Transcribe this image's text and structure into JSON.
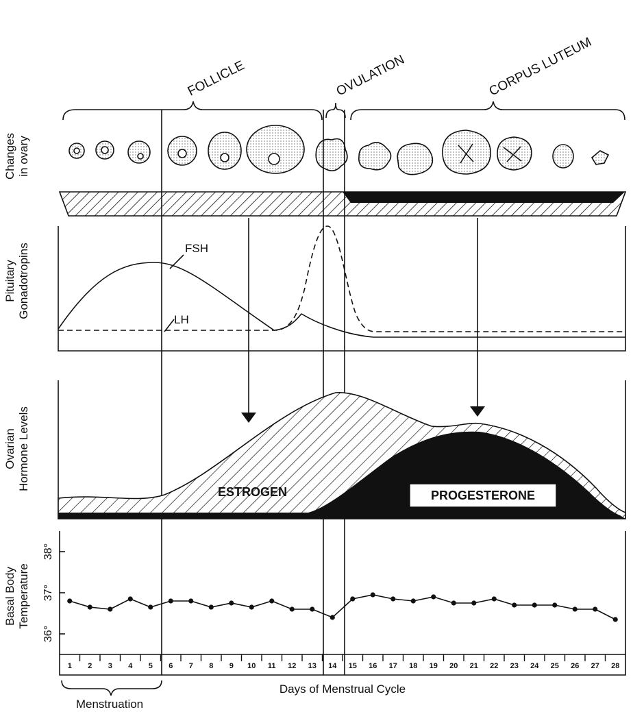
{
  "phases": [
    "FOLLICLE",
    "OVULATION",
    "CORPUS LUTEUM"
  ],
  "panels": [
    {
      "lines": [
        "Changes",
        "in ovary"
      ]
    },
    {
      "lines": [
        "Pituitary",
        "Gonadotropins"
      ]
    },
    {
      "lines": [
        "Ovarian",
        "Hormone Levels"
      ]
    },
    {
      "lines": [
        "Basal Body",
        "Temperature"
      ]
    }
  ],
  "hormones": {
    "fsh": "FSH",
    "lh": "LH",
    "estrogen": "ESTROGEN",
    "progesterone": "PROGESTERONE"
  },
  "menstruation": "Menstruation",
  "chart_data": {
    "type": "line",
    "xlabel": "Days of Menstrual Cycle",
    "categories": [
      1,
      2,
      3,
      4,
      5,
      6,
      7,
      8,
      9,
      10,
      11,
      12,
      13,
      14,
      15,
      16,
      17,
      18,
      19,
      20,
      21,
      22,
      23,
      24,
      25,
      26,
      27,
      28
    ],
    "values": [
      36.8,
      36.65,
      36.6,
      36.85,
      36.65,
      36.8,
      36.8,
      36.65,
      36.75,
      36.65,
      36.8,
      36.6,
      36.6,
      36.4,
      36.85,
      36.95,
      36.85,
      36.8,
      36.9,
      36.75,
      36.75,
      36.85,
      36.7,
      36.7,
      36.7,
      36.6,
      36.6,
      36.35
    ],
    "color": "#111111",
    "ylim": [
      35.5,
      38.5
    ],
    "yticks": [
      {
        "value": 36,
        "label": "36°"
      },
      {
        "value": 37,
        "label": "37°"
      },
      {
        "value": 38,
        "label": "38°"
      }
    ]
  }
}
